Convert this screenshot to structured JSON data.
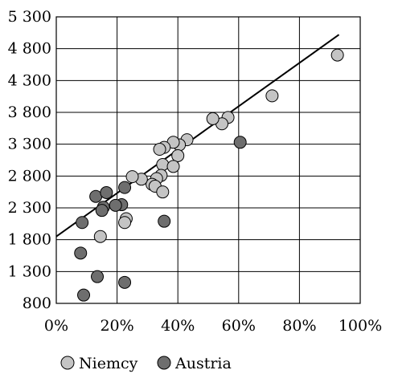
{
  "chart_data": {
    "type": "scatter",
    "title": "",
    "xlabel": "",
    "ylabel": "",
    "xlim": [
      0,
      100
    ],
    "ylim": [
      800,
      5300
    ],
    "x_ticks": [
      0,
      20,
      40,
      60,
      80,
      100
    ],
    "x_tick_labels": [
      "0%",
      "20%",
      "40%",
      "60%",
      "80%",
      "100%"
    ],
    "y_ticks": [
      800,
      1300,
      1800,
      2300,
      2800,
      3300,
      3800,
      4300,
      4800,
      5300
    ],
    "y_tick_labels": [
      "800",
      "1 300",
      "1 800",
      "2 300",
      "2 800",
      "3 300",
      "3 800",
      "4 300",
      "4 800",
      "5 300"
    ],
    "grid": true,
    "legend_position": "bottom",
    "series": [
      {
        "name": "Niemcy",
        "color": "#c4c4c4",
        "points": [
          [
            92.5,
            4700
          ],
          [
            71,
            4060
          ],
          [
            56.5,
            3720
          ],
          [
            54.5,
            3620
          ],
          [
            51.5,
            3700
          ],
          [
            43,
            3370
          ],
          [
            40.5,
            3290
          ],
          [
            38.5,
            3330
          ],
          [
            40,
            3120
          ],
          [
            35.5,
            3250
          ],
          [
            34,
            3220
          ],
          [
            35,
            2980
          ],
          [
            38.5,
            2950
          ],
          [
            34.5,
            2810
          ],
          [
            33,
            2760
          ],
          [
            31.5,
            2670
          ],
          [
            32.5,
            2640
          ],
          [
            28,
            2750
          ],
          [
            25,
            2790
          ],
          [
            35,
            2550
          ],
          [
            23,
            2130
          ],
          [
            22.5,
            2070
          ],
          [
            14.5,
            1850
          ]
        ]
      },
      {
        "name": "Austria",
        "color": "#6e6e6e",
        "points": [
          [
            60.5,
            3330
          ],
          [
            22.5,
            2620
          ],
          [
            13,
            2480
          ],
          [
            16.5,
            2540
          ],
          [
            21.5,
            2350
          ],
          [
            19.5,
            2340
          ],
          [
            15.5,
            2310
          ],
          [
            15,
            2260
          ],
          [
            35.5,
            2090
          ],
          [
            8.5,
            2070
          ],
          [
            8,
            1590
          ],
          [
            13.5,
            1220
          ],
          [
            22.5,
            1130
          ],
          [
            9,
            930
          ]
        ]
      }
    ],
    "trend_line": {
      "from": [
        0,
        1850
      ],
      "to": [
        93,
        5020
      ]
    }
  }
}
